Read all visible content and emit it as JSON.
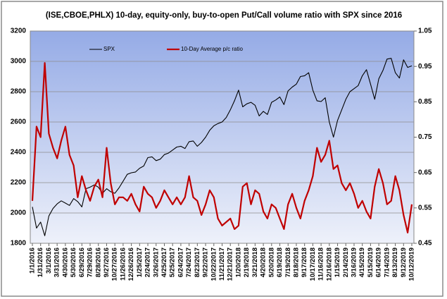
{
  "chart_data": {
    "type": "line",
    "title": "(ISE,CBOE,PHLX)  10-day, equity-only,  buy-to-open  Put/Call volume ratio with SPX since 2016",
    "categories": [
      "1/1/2016",
      null,
      "1/31/2016",
      null,
      "3/1/2016",
      null,
      "3/31/2016",
      null,
      "4/30/2016",
      null,
      "5/30/2016",
      null,
      "6/29/2016",
      null,
      "7/29/2016",
      null,
      "8/28/2016",
      null,
      "9/27/2016",
      null,
      "10/27/2016",
      null,
      "11/26/2016",
      null,
      "12/26/2016",
      null,
      "1/25/2017",
      null,
      "2/24/2017",
      null,
      "3/26/2017",
      null,
      "4/25/2017",
      null,
      "5/25/2017",
      null,
      "6/24/2017",
      null,
      "7/24/2017",
      null,
      "8/23/2017",
      null,
      "9/22/2017",
      null,
      "10/22/2017",
      null,
      "11/21/2017",
      null,
      "12/21/2017",
      null,
      "1/20/2018",
      null,
      "2/19/2018",
      null,
      "3/21/2018",
      null,
      "4/20/2018",
      null,
      "5/20/2018",
      null,
      "6/19/2018",
      null,
      "7/19/2018",
      null,
      "8/18/2018",
      null,
      "9/17/2018",
      null,
      "10/17/2018",
      null,
      "11/16/2018",
      null,
      "12/16/2018",
      null,
      "1/15/2019",
      null,
      "2/14/2019",
      null,
      "3/16/2019",
      null,
      "4/15/2019",
      null,
      "5/15/2019",
      null,
      "6/14/2019",
      null,
      "7/14/2019",
      null,
      "8/13/2019",
      null,
      "9/12/2019",
      null,
      "10/12/2019"
    ],
    "series": [
      {
        "name": "SPX",
        "color": "#000000",
        "values": [
          2040,
          1900,
          1940,
          1850,
          1980,
          2030,
          2060,
          2080,
          2065,
          2050,
          2095,
          2075,
          2040,
          2160,
          2170,
          2185,
          2170,
          2130,
          2160,
          2140,
          2130,
          2165,
          2210,
          2255,
          2265,
          2270,
          2295,
          2310,
          2365,
          2370,
          2345,
          2355,
          2385,
          2395,
          2415,
          2435,
          2440,
          2425,
          2470,
          2475,
          2440,
          2465,
          2500,
          2545,
          2575,
          2590,
          2600,
          2630,
          2680,
          2740,
          2810,
          2700,
          2720,
          2730,
          2710,
          2640,
          2670,
          2650,
          2730,
          2745,
          2765,
          2715,
          2805,
          2830,
          2850,
          2900,
          2905,
          2925,
          2810,
          2740,
          2735,
          2760,
          2600,
          2500,
          2610,
          2680,
          2750,
          2800,
          2820,
          2840,
          2905,
          2945,
          2850,
          2750,
          2885,
          2940,
          3015,
          3020,
          2925,
          2890,
          3010,
          2960,
          2970
        ]
      },
      {
        "name": "10-Day Average p/c ratio",
        "color": "#c00000",
        "axis": "y2",
        "values": [
          0.57,
          0.78,
          0.75,
          0.96,
          0.76,
          0.72,
          0.69,
          0.74,
          0.78,
          0.7,
          0.67,
          0.58,
          0.64,
          0.6,
          0.57,
          0.61,
          0.63,
          0.58,
          0.72,
          0.62,
          0.56,
          0.58,
          0.58,
          0.57,
          0.59,
          0.56,
          0.54,
          0.61,
          0.59,
          0.58,
          0.55,
          0.57,
          0.6,
          0.58,
          0.56,
          0.58,
          0.56,
          0.58,
          0.64,
          0.58,
          0.57,
          0.53,
          0.56,
          0.6,
          0.58,
          0.52,
          0.5,
          0.51,
          0.52,
          0.49,
          0.5,
          0.61,
          0.62,
          0.56,
          0.6,
          0.59,
          0.54,
          0.52,
          0.56,
          0.55,
          0.52,
          0.49,
          0.56,
          0.59,
          0.55,
          0.52,
          0.57,
          0.6,
          0.64,
          0.72,
          0.68,
          0.7,
          0.74,
          0.66,
          0.67,
          0.62,
          0.6,
          0.62,
          0.59,
          0.55,
          0.57,
          0.54,
          0.52,
          0.61,
          0.66,
          0.62,
          0.56,
          0.57,
          0.64,
          0.6,
          0.53,
          0.48,
          0.56
        ]
      }
    ],
    "ylim": [
      1800,
      3200
    ],
    "yticks": [
      1800,
      2000,
      2200,
      2400,
      2600,
      2800,
      3000,
      3200
    ],
    "y2lim": [
      0.45,
      1.05
    ],
    "y2ticks": [
      0.45,
      0.55,
      0.65,
      0.75,
      0.85,
      0.95,
      1.05
    ],
    "grid": true
  }
}
